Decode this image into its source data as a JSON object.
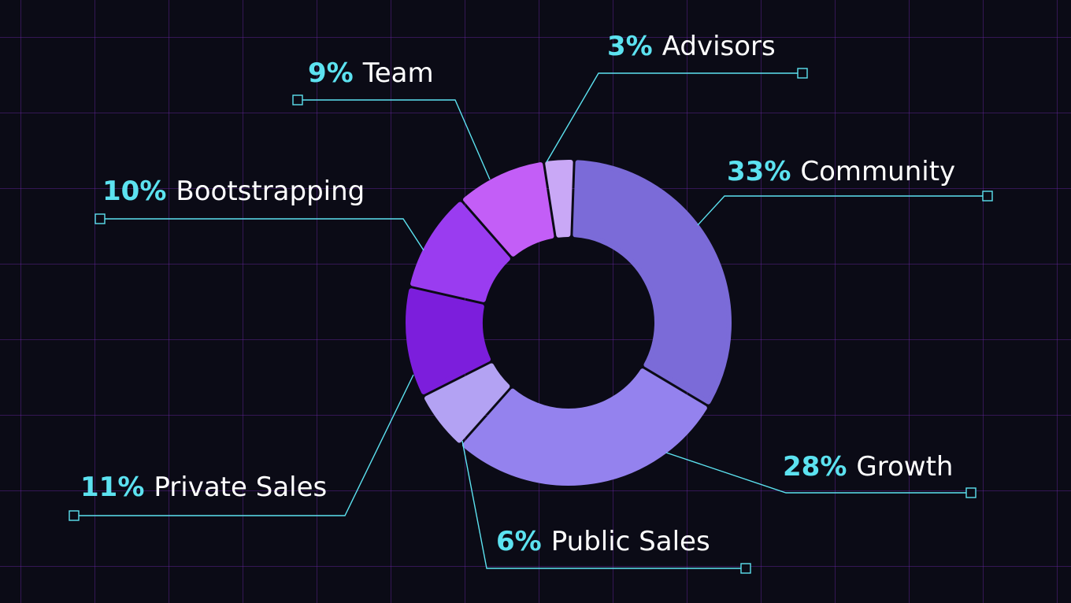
{
  "chart_data": {
    "type": "pie",
    "donut": true,
    "categories": [
      "Community",
      "Growth",
      "Public Sales",
      "Private Sales",
      "Bootstrapping",
      "Team",
      "Advisors"
    ],
    "values": [
      33,
      28,
      6,
      11,
      10,
      9,
      3
    ],
    "value_labels": [
      "33%",
      "28%",
      "6%",
      "11%",
      "10%",
      "9%",
      "3%"
    ],
    "colors": [
      "#7b6bd8",
      "#9482ee",
      "#b3a2f3",
      "#7c1edc",
      "#9a3cf0",
      "#c35ef7",
      "#c9a8f6"
    ],
    "legend": "leader-line labels around the donut"
  },
  "theme": {
    "background": "#0b0b16",
    "grid": "#4a1f73",
    "accent": "#5ce2f0",
    "text": "#ffffff",
    "leader_line": "#5ce2f0"
  }
}
